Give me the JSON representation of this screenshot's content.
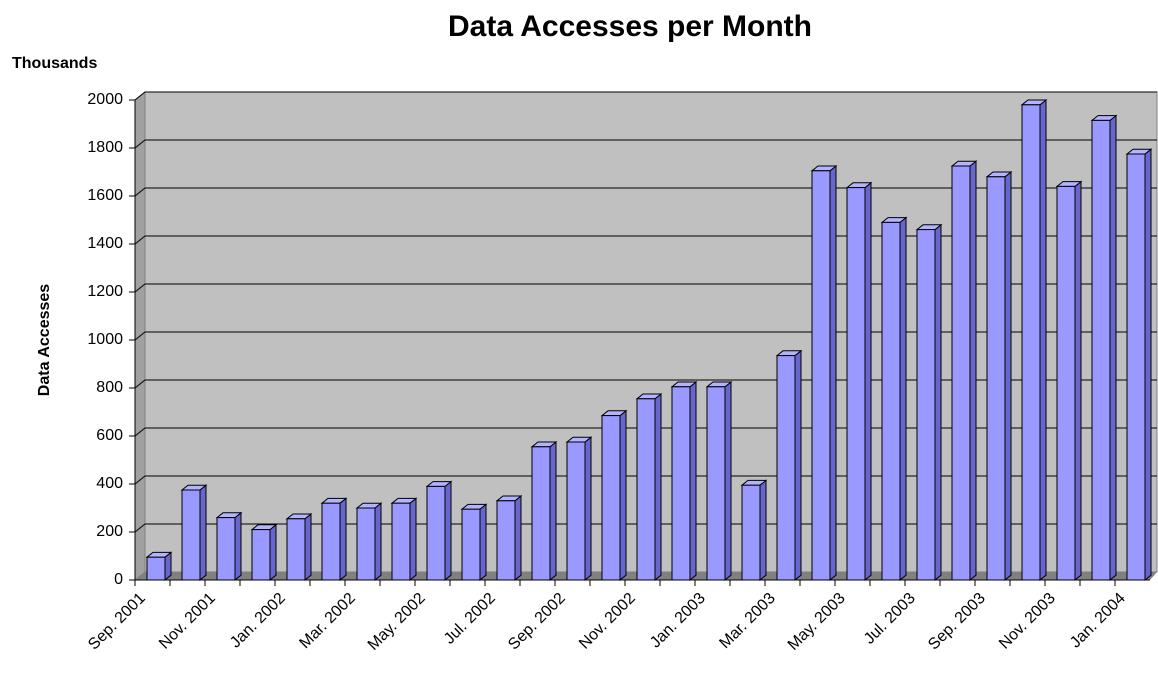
{
  "chart_data": {
    "type": "bar",
    "title": "Data Accesses per Month",
    "y_unit": "Thousands",
    "y_label": "Data Accesses",
    "categories": [
      "Sep. 2001",
      null,
      "Nov. 2001",
      null,
      "Jan. 2002",
      null,
      "Mar. 2002",
      null,
      "May. 2002",
      null,
      "Jul. 2002",
      null,
      "Sep. 2002",
      null,
      "Nov. 2002",
      null,
      "Jan. 2003",
      null,
      "Mar. 2003",
      null,
      "May. 2003",
      null,
      "Jul. 2003",
      null,
      "Sep. 2003",
      null,
      "Nov. 2003",
      null,
      "Jan. 2004"
    ],
    "values": [
      95,
      375,
      260,
      210,
      255,
      320,
      300,
      320,
      390,
      295,
      330,
      555,
      575,
      685,
      755,
      805,
      805,
      395,
      935,
      1705,
      1635,
      1490,
      1460,
      1725,
      1680,
      1980,
      1640,
      1915,
      1775
    ],
    "color": "#9999ff",
    "ylim": [
      0,
      2000
    ],
    "yticks": [
      0,
      200,
      400,
      600,
      800,
      1000,
      1200,
      1400,
      1600,
      1800,
      2000
    ],
    "grid": true
  }
}
